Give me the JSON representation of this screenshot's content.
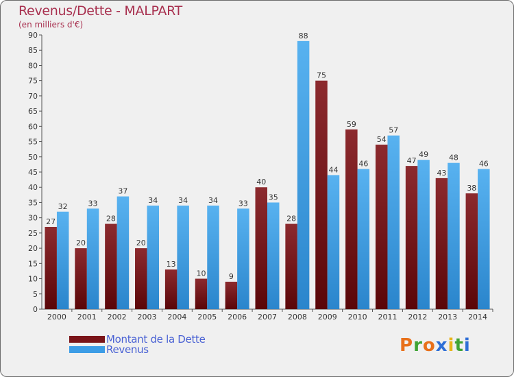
{
  "title": "Revenus/Dette - MALPART",
  "subtitle": "(en milliers d'€)",
  "colors": {
    "dette": "#7a1418",
    "revenus": "#3d9de6",
    "title": "#a8304f",
    "legend_text": "#4a62d4"
  },
  "legend": {
    "dette_label": "Montant de la Dette",
    "revenus_label": "Revenus"
  },
  "logo": {
    "letters": [
      "P",
      "r",
      "o",
      "x",
      "i",
      "t",
      "i"
    ],
    "colors": [
      "#e8701a",
      "#3fa335",
      "#e8701a",
      "#2f6fd6",
      "#e8b41a",
      "#3fa335",
      "#2f6fd6"
    ]
  },
  "chart_data": {
    "type": "bar",
    "title": "Revenus/Dette - MALPART",
    "subtitle": "(en milliers d'€)",
    "categories": [
      "2000",
      "2001",
      "2002",
      "2003",
      "2004",
      "2005",
      "2006",
      "2007",
      "2008",
      "2009",
      "2010",
      "2011",
      "2012",
      "2013",
      "2014"
    ],
    "series": [
      {
        "name": "Montant de la Dette",
        "values": [
          27,
          20,
          28,
          20,
          13,
          10,
          9,
          40,
          28,
          75,
          59,
          54,
          47,
          43,
          38
        ]
      },
      {
        "name": "Revenus",
        "values": [
          32,
          33,
          37,
          34,
          34,
          34,
          33,
          35,
          88,
          44,
          46,
          57,
          49,
          48,
          46
        ]
      }
    ],
    "ylim": [
      0,
      90
    ],
    "yticks": [
      0,
      5,
      10,
      15,
      20,
      25,
      30,
      35,
      40,
      45,
      50,
      55,
      60,
      65,
      70,
      75,
      80,
      85,
      90
    ],
    "grid": false,
    "legend_position": "bottom-left"
  }
}
